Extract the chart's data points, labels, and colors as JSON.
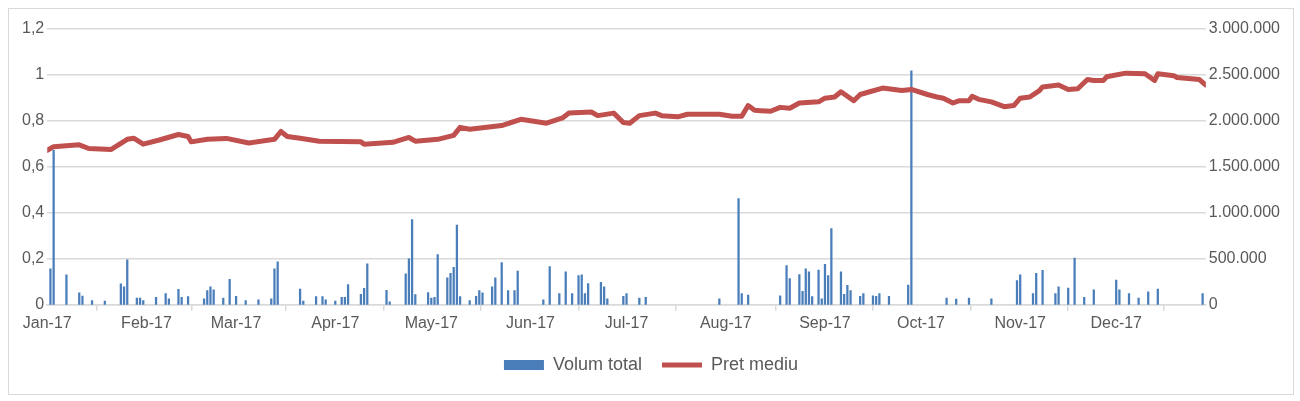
{
  "chart_data": {
    "type": "bar",
    "xlim": [
      "2017-01-01",
      "2017-12-29"
    ],
    "xticks": [
      {
        "value": "2017-01-01",
        "label": "Jan-17"
      },
      {
        "value": "2017-02-01",
        "label": "Feb-17"
      },
      {
        "value": "2017-03-01",
        "label": "Mar-17"
      },
      {
        "value": "2017-04-01",
        "label": "Apr-17"
      },
      {
        "value": "2017-05-01",
        "label": "May-17"
      },
      {
        "value": "2017-06-01",
        "label": "Jun-17"
      },
      {
        "value": "2017-07-01",
        "label": "Jul-17"
      },
      {
        "value": "2017-08-01",
        "label": "Aug-17"
      },
      {
        "value": "2017-09-01",
        "label": "Sep-17"
      },
      {
        "value": "2017-10-01",
        "label": "Oct-17"
      },
      {
        "value": "2017-11-01",
        "label": "Nov-17"
      },
      {
        "value": "2017-12-01",
        "label": "Dec-17"
      }
    ],
    "ylim": [
      0,
      1.2
    ],
    "yticks": [
      0,
      {
        "value": 0.2,
        "label": "0,2"
      },
      {
        "value": 0.4,
        "label": "0,4"
      },
      {
        "value": 0.6,
        "label": "0,6"
      },
      {
        "value": 0.8,
        "label": "0,8"
      },
      1,
      {
        "value": 1.2,
        "label": "1,2"
      }
    ],
    "y2lim": [
      0,
      3000000
    ],
    "y2ticks": [
      0,
      {
        "value": 500000,
        "label": "500.000"
      },
      {
        "value": 1000000,
        "label": "1.000.000"
      },
      {
        "value": 1500000,
        "label": "1.500.000"
      },
      {
        "value": 2000000,
        "label": "2.000.000"
      },
      {
        "value": 2500000,
        "label": "2.500.000"
      },
      {
        "value": 3000000,
        "label": "3.000.000"
      }
    ],
    "grid": "y",
    "legend": "bottom",
    "series": [
      {
        "name": "Volum total",
        "axis": "y2",
        "color": "#4a7ebb",
        "x": [
          "2017-01-02",
          "2017-01-03",
          "2017-01-07",
          "2017-01-11",
          "2017-01-12",
          "2017-01-15",
          "2017-01-19",
          "2017-01-24",
          "2017-01-25",
          "2017-01-26",
          "2017-01-29",
          "2017-01-30",
          "2017-01-31",
          "2017-02-04",
          "2017-02-07",
          "2017-02-08",
          "2017-02-11",
          "2017-02-12",
          "2017-02-14",
          "2017-02-19",
          "2017-02-20",
          "2017-02-21",
          "2017-02-22",
          "2017-02-25",
          "2017-02-27",
          "2017-03-01",
          "2017-03-04",
          "2017-03-08",
          "2017-03-12",
          "2017-03-13",
          "2017-03-14",
          "2017-03-21",
          "2017-03-22",
          "2017-03-26",
          "2017-03-28",
          "2017-03-29",
          "2017-04-01",
          "2017-04-03",
          "2017-04-04",
          "2017-04-05",
          "2017-04-09",
          "2017-04-10",
          "2017-04-11",
          "2017-04-17",
          "2017-04-18",
          "2017-04-23",
          "2017-04-24",
          "2017-04-25",
          "2017-04-26",
          "2017-04-30",
          "2017-05-01",
          "2017-05-02",
          "2017-05-03",
          "2017-05-06",
          "2017-05-07",
          "2017-05-08",
          "2017-05-09",
          "2017-05-10",
          "2017-05-13",
          "2017-05-15",
          "2017-05-16",
          "2017-05-17",
          "2017-05-20",
          "2017-05-21",
          "2017-05-23",
          "2017-05-25",
          "2017-05-27",
          "2017-05-28",
          "2017-06-05",
          "2017-06-07",
          "2017-06-10",
          "2017-06-12",
          "2017-06-14",
          "2017-06-16",
          "2017-06-17",
          "2017-06-18",
          "2017-06-19",
          "2017-06-23",
          "2017-06-24",
          "2017-06-25",
          "2017-06-30",
          "2017-07-01",
          "2017-07-05",
          "2017-07-07",
          "2017-07-30",
          "2017-08-05",
          "2017-08-06",
          "2017-08-08",
          "2017-08-18",
          "2017-08-20",
          "2017-08-21",
          "2017-08-24",
          "2017-08-25",
          "2017-08-26",
          "2017-08-27",
          "2017-08-28",
          "2017-08-30",
          "2017-08-31",
          "2017-09-01",
          "2017-09-02",
          "2017-09-03",
          "2017-09-06",
          "2017-09-07",
          "2017-09-08",
          "2017-09-09",
          "2017-09-12",
          "2017-09-13",
          "2017-09-16",
          "2017-09-17",
          "2017-09-18",
          "2017-09-21",
          "2017-09-27",
          "2017-09-28",
          "2017-10-09",
          "2017-10-12",
          "2017-10-16",
          "2017-10-23",
          "2017-10-31",
          "2017-11-01",
          "2017-11-05",
          "2017-11-06",
          "2017-11-08",
          "2017-11-12",
          "2017-11-13",
          "2017-11-16",
          "2017-11-18",
          "2017-11-21",
          "2017-11-24",
          "2017-12-01",
          "2017-12-02",
          "2017-12-05",
          "2017-12-08",
          "2017-12-11",
          "2017-12-14",
          "2017-12-28"
        ],
        "values": [
          390000,
          1680000,
          325000,
          130000,
          95000,
          45000,
          40000,
          228000,
          195000,
          488000,
          73000,
          73000,
          45000,
          81000,
          122000,
          65000,
          167000,
          81000,
          89000,
          65000,
          154000,
          195000,
          163000,
          73000,
          276000,
          93000,
          45000,
          53000,
          65000,
          390000,
          467000,
          171000,
          40000,
          89000,
          89000,
          53000,
          40000,
          81000,
          81000,
          220000,
          114000,
          179000,
          447000,
          158000,
          32000,
          337000,
          500000,
          927000,
          110000,
          134000,
          73000,
          81000,
          545000,
          293000,
          341000,
          407000,
          866000,
          89000,
          45000,
          93000,
          154000,
          130000,
          195000,
          293000,
          459000,
          154000,
          154000,
          366000,
          53000,
          415000,
          122000,
          358000,
          122000,
          317000,
          325000,
          122000,
          232000,
          244000,
          195000,
          65000,
          93000,
          122000,
          73000,
          81000,
          65000,
          1155000,
          122000,
          106000,
          98000,
          427000,
          285000,
          329000,
          146000,
          390000,
          358000,
          89000,
          378000,
          65000,
          439000,
          317000,
          829000,
          358000,
          114000,
          211000,
          154000,
          93000,
          122000,
          98000,
          93000,
          122000,
          93000,
          215000,
          2545000,
          73000,
          61000,
          73000,
          65000,
          264000,
          325000,
          122000,
          341000,
          374000,
          122000,
          195000,
          183000,
          508000,
          81000,
          163000,
          268000,
          163000,
          122000,
          73000,
          142000,
          171000,
          122000
        ]
      },
      {
        "name": "Pret mediu",
        "type": "line",
        "color": "#c0504d",
        "x": [
          "2017-01-01",
          "2017-01-03",
          "2017-01-11",
          "2017-01-14",
          "2017-01-21",
          "2017-01-26",
          "2017-01-28",
          "2017-01-31",
          "2017-02-05",
          "2017-02-11",
          "2017-02-14",
          "2017-02-15",
          "2017-02-20",
          "2017-02-26",
          "2017-03-05",
          "2017-03-13",
          "2017-03-15",
          "2017-03-17",
          "2017-03-21",
          "2017-03-27",
          "2017-04-09",
          "2017-04-10",
          "2017-04-19",
          "2017-04-24",
          "2017-04-26",
          "2017-05-03",
          "2017-05-08",
          "2017-05-10",
          "2017-05-13",
          "2017-05-23",
          "2017-05-29",
          "2017-06-06",
          "2017-06-11",
          "2017-06-13",
          "2017-06-20",
          "2017-06-22",
          "2017-06-27",
          "2017-06-30",
          "2017-07-02",
          "2017-07-05",
          "2017-07-10",
          "2017-07-12",
          "2017-07-17",
          "2017-07-20",
          "2017-07-30",
          "2017-08-03",
          "2017-08-06",
          "2017-08-08",
          "2017-08-10",
          "2017-08-15",
          "2017-08-18",
          "2017-08-21",
          "2017-08-24",
          "2017-08-30",
          "2017-09-01",
          "2017-09-04",
          "2017-09-06",
          "2017-09-10",
          "2017-09-12",
          "2017-09-15",
          "2017-09-19",
          "2017-09-25",
          "2017-09-28",
          "2017-10-03",
          "2017-10-06",
          "2017-10-08",
          "2017-10-11",
          "2017-10-13",
          "2017-10-16",
          "2017-10-17",
          "2017-10-19",
          "2017-10-23",
          "2017-10-27",
          "2017-10-30",
          "2017-11-01",
          "2017-11-04",
          "2017-11-07",
          "2017-11-08",
          "2017-11-13",
          "2017-11-16",
          "2017-11-19",
          "2017-11-22",
          "2017-11-24",
          "2017-11-27",
          "2017-11-28",
          "2017-12-04",
          "2017-12-10",
          "2017-12-13",
          "2017-12-14",
          "2017-12-19",
          "2017-12-20",
          "2017-12-27",
          "2017-12-29"
        ],
        "values": [
          0.672,
          0.688,
          0.696,
          0.68,
          0.676,
          0.72,
          0.725,
          0.699,
          0.717,
          0.741,
          0.732,
          0.709,
          0.72,
          0.724,
          0.704,
          0.72,
          0.754,
          0.732,
          0.725,
          0.712,
          0.709,
          0.699,
          0.707,
          0.728,
          0.712,
          0.72,
          0.737,
          0.772,
          0.764,
          0.78,
          0.807,
          0.79,
          0.813,
          0.834,
          0.839,
          0.823,
          0.834,
          0.793,
          0.79,
          0.823,
          0.834,
          0.823,
          0.818,
          0.829,
          0.829,
          0.82,
          0.82,
          0.867,
          0.846,
          0.842,
          0.859,
          0.855,
          0.878,
          0.883,
          0.899,
          0.904,
          0.927,
          0.888,
          0.915,
          0.927,
          0.943,
          0.932,
          0.937,
          0.915,
          0.904,
          0.899,
          0.878,
          0.888,
          0.888,
          0.907,
          0.894,
          0.883,
          0.862,
          0.867,
          0.899,
          0.904,
          0.932,
          0.948,
          0.956,
          0.937,
          0.94,
          0.98,
          0.976,
          0.976,
          0.992,
          1.008,
          1.005,
          0.976,
          1.005,
          0.997,
          0.989,
          0.98,
          0.956
        ]
      }
    ]
  }
}
